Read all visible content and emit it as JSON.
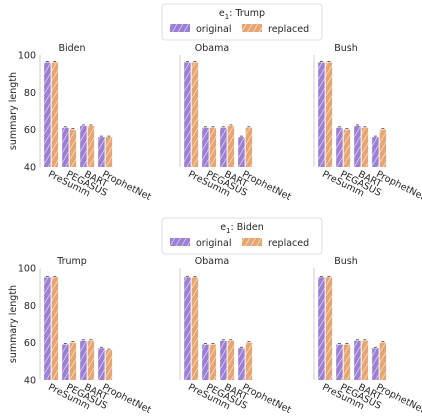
{
  "figure": {
    "y_axis_label": "summary length",
    "legend_subscript": "1",
    "legend_base": "e",
    "series_names": [
      "original",
      "replaced"
    ],
    "series_colors": [
      "#9b7fd4",
      "#e6a571"
    ]
  },
  "chart_data": [
    {
      "type": "bar",
      "group_title": "e₁: Trump",
      "legend_entity": "Trump",
      "panels": [
        {
          "title": "Biden",
          "categories": [
            "PreSumm",
            "PEGASUS",
            "BART",
            "ProphetNet"
          ],
          "series": [
            {
              "name": "original",
              "values": [
                96,
                61,
                62,
                56
              ]
            },
            {
              "name": "replaced",
              "values": [
                96,
                60,
                62,
                56
              ]
            }
          ]
        },
        {
          "title": "Obama",
          "categories": [
            "PreSumm",
            "PEGASUS",
            "BART",
            "ProphetNet"
          ],
          "series": [
            {
              "name": "original",
              "values": [
                96,
                61,
                61,
                56
              ]
            },
            {
              "name": "replaced",
              "values": [
                96,
                61,
                62,
                61
              ]
            }
          ]
        },
        {
          "title": "Bush",
          "categories": [
            "PreSumm",
            "PEGASUS",
            "BART",
            "ProphetNet"
          ],
          "series": [
            {
              "name": "original",
              "values": [
                96,
                61,
                62,
                56
              ]
            },
            {
              "name": "replaced",
              "values": [
                96,
                60,
                61,
                60
              ]
            }
          ]
        }
      ],
      "ylabel": "summary length",
      "ylim": [
        40,
        100
      ],
      "yticks": [
        40,
        60,
        80,
        100
      ],
      "legend_placement": "top-center"
    },
    {
      "type": "bar",
      "group_title": "e₁: Biden",
      "legend_entity": "Biden",
      "panels": [
        {
          "title": "Trump",
          "categories": [
            "PreSumm",
            "PEGASUS",
            "BART",
            "ProphetNet"
          ],
          "series": [
            {
              "name": "original",
              "values": [
                95,
                59,
                61,
                57
              ]
            },
            {
              "name": "replaced",
              "values": [
                95,
                60,
                61,
                56
              ]
            }
          ]
        },
        {
          "title": "Obama",
          "categories": [
            "PreSumm",
            "PEGASUS",
            "BART",
            "ProphetNet"
          ],
          "series": [
            {
              "name": "original",
              "values": [
                95,
                59,
                61,
                57
              ]
            },
            {
              "name": "replaced",
              "values": [
                95,
                59,
                61,
                60
              ]
            }
          ]
        },
        {
          "title": "Bush",
          "categories": [
            "PreSumm",
            "PEGASUS",
            "BART",
            "ProphetNet"
          ],
          "series": [
            {
              "name": "original",
              "values": [
                95,
                59,
                61,
                57
              ]
            },
            {
              "name": "replaced",
              "values": [
                95,
                59,
                61,
                60
              ]
            }
          ]
        }
      ],
      "ylabel": "summary length",
      "ylim": [
        40,
        100
      ],
      "yticks": [
        40,
        60,
        80,
        100
      ],
      "legend_placement": "top-center"
    }
  ]
}
